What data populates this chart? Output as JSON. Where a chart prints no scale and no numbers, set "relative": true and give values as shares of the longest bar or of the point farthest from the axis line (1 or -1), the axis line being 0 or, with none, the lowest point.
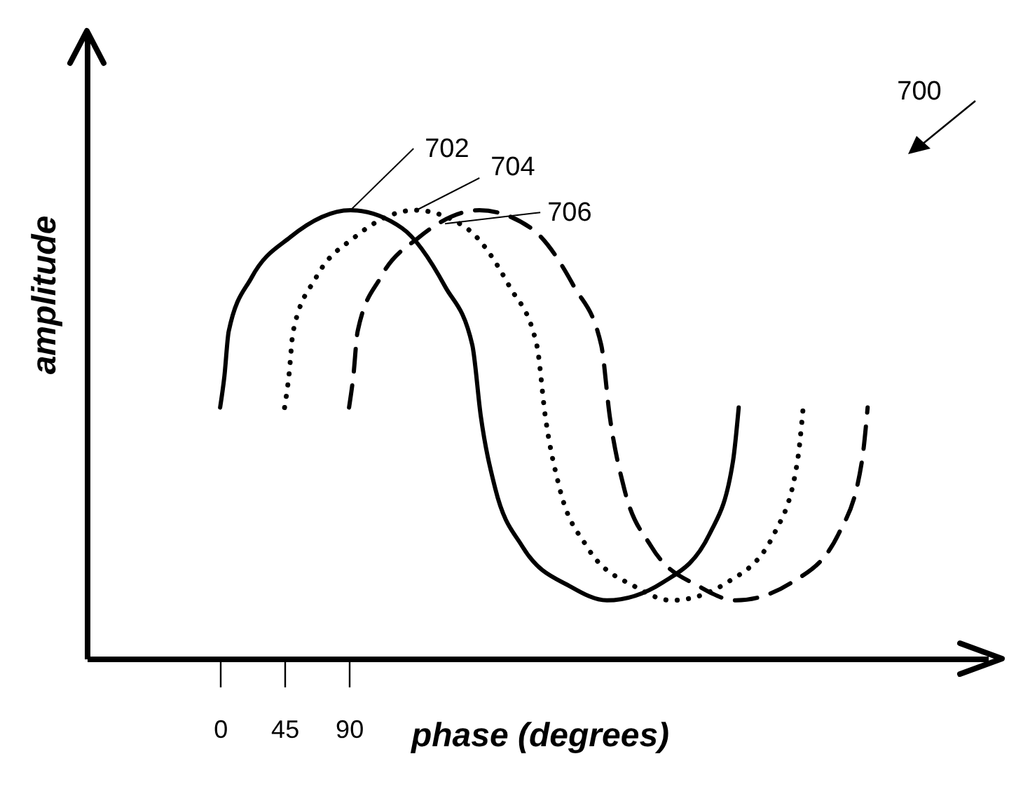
{
  "chart_data": {
    "type": "line",
    "relative": true,
    "xlabel": "phase (degrees)",
    "ylabel": "amplitude",
    "xlim": [
      -93,
      536
    ],
    "xticks": [
      0,
      45,
      90
    ],
    "tick_labels": "x",
    "series": [
      {
        "color": "#000000",
        "line_style": "solid",
        "x": [
          0,
          3,
          6,
          22,
          49,
          91,
          127,
          157,
          176,
          182,
          192,
          211,
          245,
          270,
          309,
          342,
          358,
          362
        ],
        "values": [
          0.56,
          0.63,
          0.73,
          0.85,
          0.94,
          1.0,
          0.96,
          0.83,
          0.7,
          0.54,
          0.38,
          0.25,
          0.16,
          0.13,
          0.17,
          0.28,
          0.44,
          0.56
        ]
      },
      {
        "color": "#000000",
        "line_style": "dotted",
        "x": [
          45,
          48,
          51,
          67,
          94,
          136,
          172,
          202,
          221,
          227,
          237,
          256,
          290,
          315,
          354,
          387,
          403,
          407
        ],
        "values": [
          0.56,
          0.63,
          0.73,
          0.85,
          0.94,
          1.0,
          0.96,
          0.83,
          0.7,
          0.54,
          0.38,
          0.25,
          0.16,
          0.13,
          0.17,
          0.28,
          0.44,
          0.56
        ]
      },
      {
        "color": "#000000",
        "line_style": "dashed",
        "x": [
          90,
          93,
          96,
          112,
          139,
          181,
          217,
          247,
          266,
          272,
          282,
          301,
          335,
          360,
          399,
          432,
          448,
          452
        ],
        "values": [
          0.56,
          0.63,
          0.73,
          0.85,
          0.94,
          1.0,
          0.96,
          0.83,
          0.7,
          0.54,
          0.38,
          0.25,
          0.16,
          0.13,
          0.17,
          0.28,
          0.44,
          0.56
        ]
      }
    ],
    "annotations": [
      {
        "text": "702",
        "x": 91,
        "y": 1.0
      },
      {
        "text": "704",
        "x": 137,
        "y": 1.0
      },
      {
        "text": "706",
        "x": 157,
        "y": 0.97
      },
      "700"
    ]
  }
}
